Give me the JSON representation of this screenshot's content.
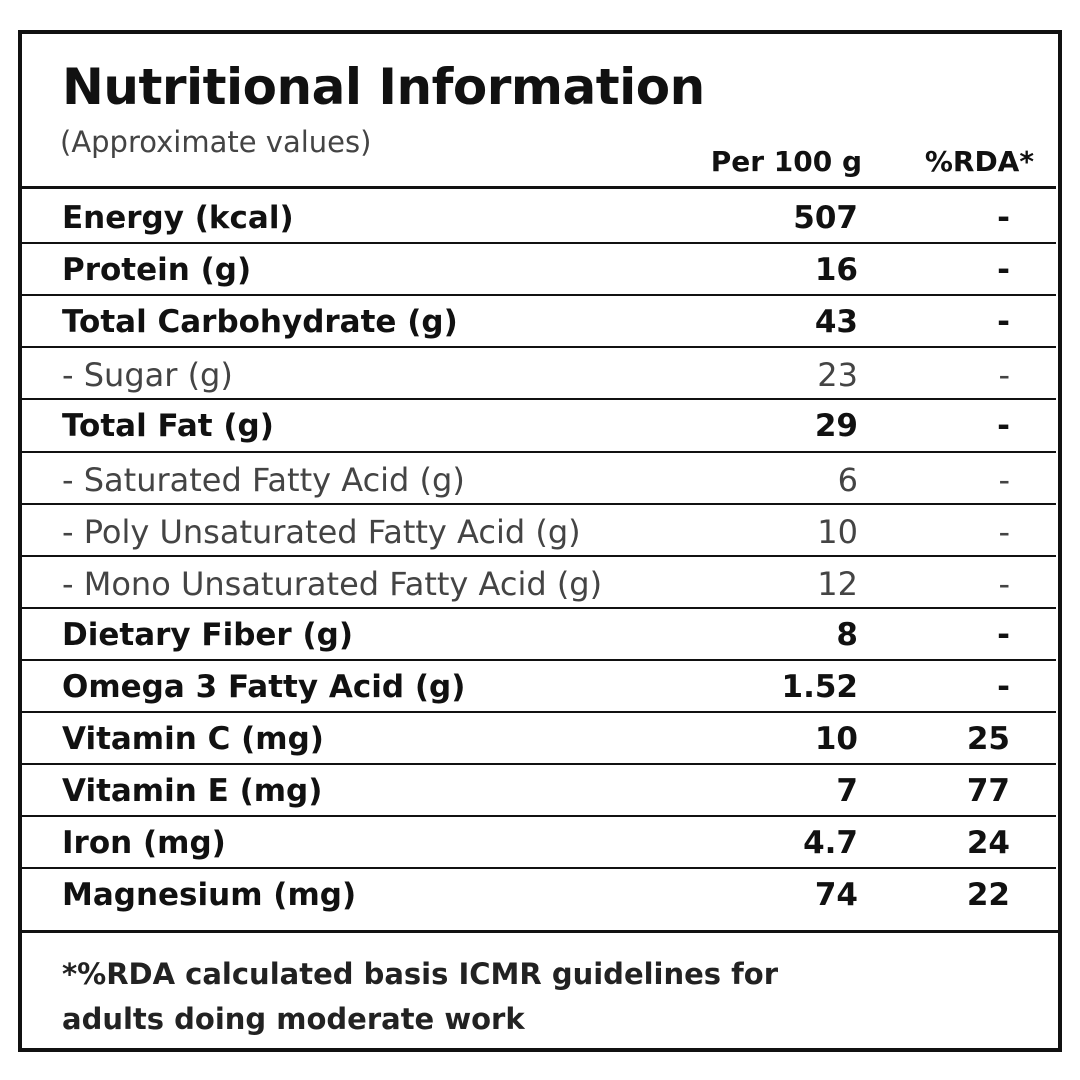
{
  "header": {
    "title": "Nutritional Information",
    "subtitle": "(Approximate values)"
  },
  "table": {
    "columns": [
      "Per 100 g",
      "%RDA*"
    ],
    "rows": [
      [
        "Energy (kcal)",
        507,
        "-"
      ],
      [
        "Protein (g)",
        16,
        "-"
      ],
      [
        "Total Carbohydrate (g)",
        43,
        "-"
      ],
      [
        "- Sugar (g)",
        23,
        "-"
      ],
      [
        "Total Fat (g)",
        29,
        "-"
      ],
      [
        "- Saturated Fatty Acid (g)",
        6,
        "-"
      ],
      [
        "- Poly Unsaturated Fatty Acid (g)",
        10,
        "-"
      ],
      [
        "- Mono Unsaturated Fatty Acid (g)",
        12,
        "-"
      ],
      [
        "Dietary Fiber (g)",
        8,
        "-"
      ],
      [
        "Omega 3 Fatty Acid (g)",
        1.52,
        "-"
      ],
      [
        "Vitamin C (mg)",
        10,
        25
      ],
      [
        "Vitamin E (mg)",
        7,
        77
      ],
      [
        "Iron (mg)",
        4.7,
        24
      ],
      [
        "Magnesium (mg)",
        74,
        22
      ]
    ]
  },
  "footnote": [
    "*%RDA calculated basis ICMR guidelines for",
    "adults doing moderate work"
  ]
}
